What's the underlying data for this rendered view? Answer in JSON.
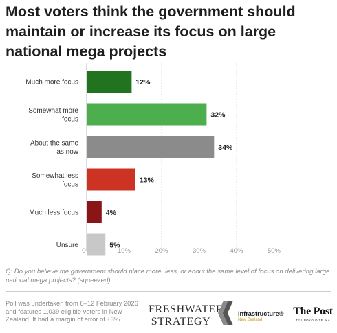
{
  "title": "Most voters think the government should maintain or increase its focus on large national mega projects",
  "chart_data": {
    "type": "bar",
    "orientation": "horizontal",
    "categories": [
      "Much more focus",
      "Somewhat more focus",
      "About the same as now",
      "Somewhat less focus",
      "Much less focus",
      "Unsure"
    ],
    "values": [
      12,
      32,
      34,
      13,
      4,
      5
    ],
    "value_labels": [
      "12%",
      "32%",
      "34%",
      "13%",
      "4%",
      "5%"
    ],
    "colors": [
      "#22731f",
      "#4cae4c",
      "#8b8b8b",
      "#cc3322",
      "#8a1516",
      "#c8c8c8"
    ],
    "xlim": [
      0,
      50
    ],
    "xticks": [
      "0%",
      "10%",
      "20%",
      "30%",
      "40%",
      "50%"
    ],
    "grid": true
  },
  "question": "Q: Do you believe the government should place more, less, or about the same level of focus on delivering large national mega projects? (squeezed)",
  "footer": {
    "note": "Poll was undertaken from 6–12 February 2026 and features 1,039 eligible voters in New Zealand. It had a margin of error of ±3%.",
    "logo_freshwater_line1": "FRESHWATER",
    "logo_freshwater_line2": "STRATEGY",
    "logo_infra_name": "Infrastructure®",
    "logo_infra_sub": "New Zealand",
    "logo_post_name": "The Post",
    "logo_post_sub": "TE UPOKO O TE IKA"
  }
}
